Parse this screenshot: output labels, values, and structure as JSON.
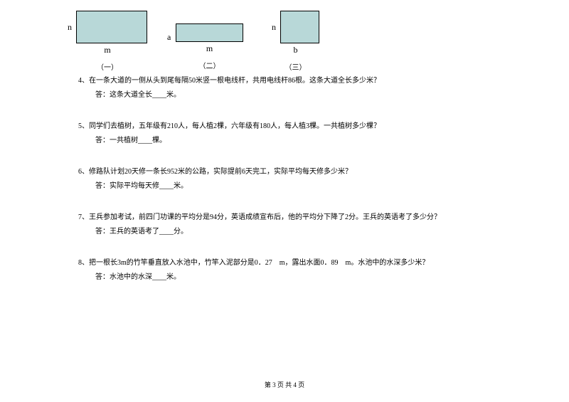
{
  "diagrams": {
    "label_n": "n",
    "label_a": "a",
    "label_m": "m",
    "label_b": "b",
    "caption1": "（一）",
    "caption2": "（二）",
    "caption3": "（三）",
    "rect_fill": "#b8d8d8",
    "rect_border": "#000000"
  },
  "q4": {
    "text": "4、在一条大道的一侧从头到尾每隔50米竖一根电线杆，共用电线杆86根。这条大道全长多少米？",
    "answer": "答：这条大道全长____米。"
  },
  "q5": {
    "text": "5、同学们去植树，五年级有210人，每人植2棵，六年级有180人，每人植3棵。一共植树多少棵？",
    "answer": "答：一共植树____棵。"
  },
  "q6": {
    "text": "6、修路队计划20天修一条长952米的公路，实际提前6天完工，实际平均每天修多少米？",
    "answer": "答：实际平均每天修____米。"
  },
  "q7": {
    "text": "7、王兵参加考试，前四门功课的平均分是94分，英语成绩宣布后，他的平均分下降了2分。王兵的英语考了多少分？",
    "answer": "答：王兵的英语考了____分。"
  },
  "q8": {
    "text": "8、把一根长3m的竹竿垂直放入水池中，竹竿入泥部分是0．27　m，露出水面0．89　m。水池中的水深多少米？",
    "answer": "答：水池中的水深____米。"
  },
  "footer": "第 3 页 共 4 页"
}
